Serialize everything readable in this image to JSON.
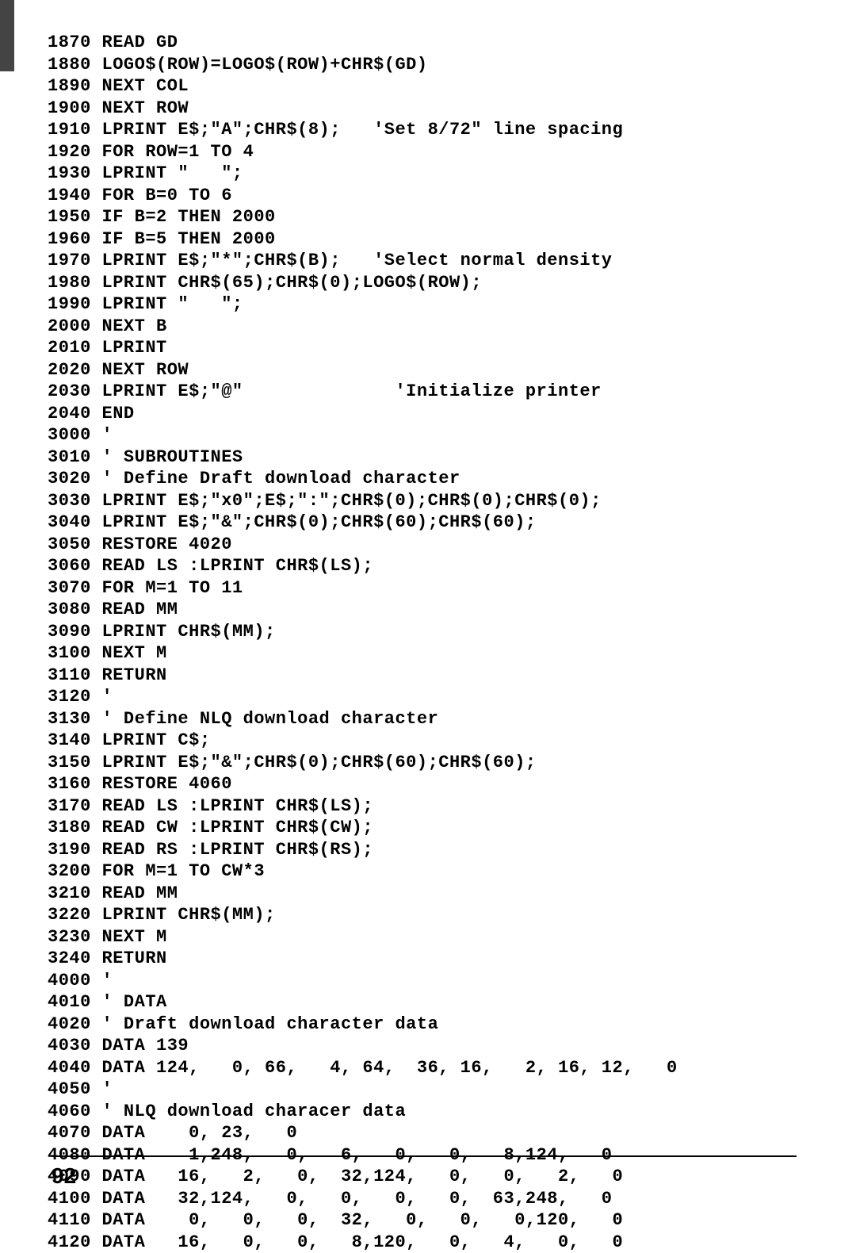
{
  "code_lines": [
    "1870 READ GD",
    "1880 LOGO$(ROW)=LOGO$(ROW)+CHR$(GD)",
    "1890 NEXT COL",
    "1900 NEXT ROW",
    "1910 LPRINT E$;\"A\";CHR$(8);   'Set 8/72\" line spacing",
    "1920 FOR ROW=1 TO 4",
    "1930 LPRINT \"   \";",
    "1940 FOR B=0 TO 6",
    "1950 IF B=2 THEN 2000",
    "1960 IF B=5 THEN 2000",
    "1970 LPRINT E$;\"*\";CHR$(B);   'Select normal density",
    "1980 LPRINT CHR$(65);CHR$(0);LOGO$(ROW);",
    "1990 LPRINT \"   \";",
    "2000 NEXT B",
    "2010 LPRINT",
    "2020 NEXT ROW",
    "2030 LPRINT E$;\"@\"              'Initialize printer",
    "2040 END",
    "3000 '",
    "3010 ' SUBROUTINES",
    "3020 ' Define Draft download character",
    "3030 LPRINT E$;\"x0\";E$;\":\";CHR$(0);CHR$(0);CHR$(0);",
    "3040 LPRINT E$;\"&\";CHR$(0);CHR$(60);CHR$(60);",
    "3050 RESTORE 4020",
    "3060 READ LS :LPRINT CHR$(LS);",
    "3070 FOR M=1 TO 11",
    "3080 READ MM",
    "3090 LPRINT CHR$(MM);",
    "3100 NEXT M",
    "3110 RETURN",
    "3120 '",
    "3130 ' Define NLQ download character",
    "3140 LPRINT C$;",
    "3150 LPRINT E$;\"&\";CHR$(0);CHR$(60);CHR$(60);",
    "3160 RESTORE 4060",
    "3170 READ LS :LPRINT CHR$(LS);",
    "3180 READ CW :LPRINT CHR$(CW);",
    "3190 READ RS :LPRINT CHR$(RS);",
    "3200 FOR M=1 TO CW*3",
    "3210 READ MM",
    "3220 LPRINT CHR$(MM);",
    "3230 NEXT M",
    "3240 RETURN",
    "4000 '",
    "4010 ' DATA",
    "4020 ' Draft download character data",
    "4030 DATA 139",
    "4040 DATA 124,   0, 66,   4, 64,  36, 16,   2, 16, 12,   0",
    "4050 '",
    "4060 ' NLQ download characer data",
    "4070 DATA    0, 23,   0",
    "4080 DATA    1,248,   0,   6,   0,   0,   8,124,   0",
    "4090 DATA   16,   2,   0,  32,124,   0,   0,   2,   0",
    "4100 DATA   32,124,   0,   0,   0,   0,  63,248,   0",
    "4110 DATA    0,   0,   0,  32,   0,   0,   0,120,   0",
    "4120 DATA   16,   0,   0,   8,120,   0,   4,   0,   0"
  ],
  "page_number": "92"
}
